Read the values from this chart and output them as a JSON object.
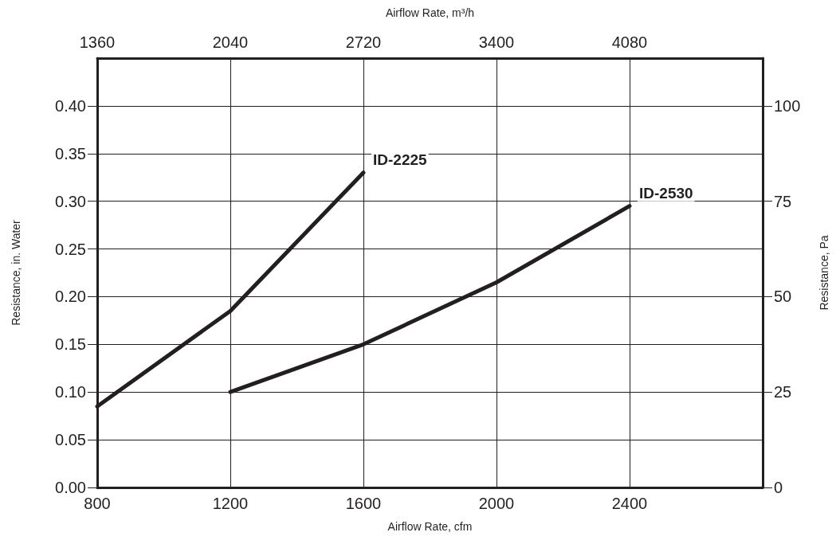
{
  "chart_data": {
    "type": "line",
    "xlabel": "Airflow Rate, cfm",
    "x2label": "Airflow Rate, m³/h",
    "ylabel": "Resistance, in. Water",
    "y2label": "Resistance, Pa",
    "xlim": [
      800,
      2800
    ],
    "xticks": [
      800,
      1200,
      1600,
      2000,
      2400
    ],
    "x2lim": [
      1360,
      4760
    ],
    "x2ticks": [
      1360,
      2040,
      2720,
      3400,
      4080
    ],
    "ylim": [
      0,
      0.45
    ],
    "yticks": [
      {
        "value": 0,
        "label": "0.00"
      },
      0.05,
      {
        "value": 0.1,
        "label": "0.10"
      },
      0.15,
      {
        "value": 0.2,
        "label": "0.20"
      },
      0.25,
      {
        "value": 0.3,
        "label": "0.30"
      },
      0.35,
      {
        "value": 0.4,
        "label": "0.40"
      }
    ],
    "y2lim": [
      0,
      112.5
    ],
    "y2ticks": [
      0,
      25,
      50,
      75,
      100
    ],
    "grid": true,
    "legend": false,
    "marker": "none",
    "line_style": "solid",
    "series": [
      {
        "name": "ID-2225",
        "color": "#231f20",
        "x": [
          800,
          1200,
          1600
        ],
        "values": [
          0.085,
          0.185,
          0.33
        ]
      },
      {
        "name": "ID-2530",
        "color": "#231f20",
        "x": [
          1200,
          1600,
          2000,
          2400
        ],
        "values": [
          0.1,
          0.15,
          0.215,
          0.295
        ]
      }
    ]
  }
}
